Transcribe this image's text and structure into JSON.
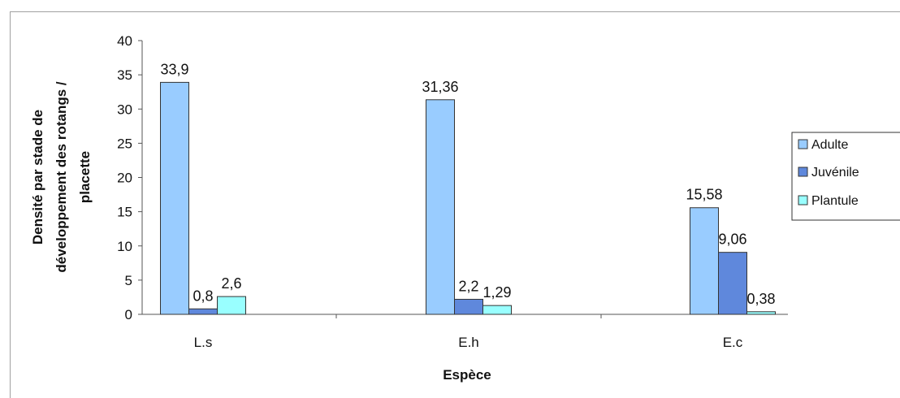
{
  "chart_data": {
    "type": "bar",
    "categories": [
      "L.s",
      "E.h",
      "E.c"
    ],
    "series": [
      {
        "name": "Adulte",
        "values": [
          33.9,
          31.36,
          15.58
        ],
        "labels": [
          "33,9",
          "31,36",
          "15,58"
        ],
        "color": "#99ccff"
      },
      {
        "name": "Juvénile",
        "values": [
          0.8,
          2.2,
          9.06
        ],
        "labels": [
          "0,8",
          "2,2",
          "9,06"
        ],
        "color": "#5f88dc"
      },
      {
        "name": "Plantule",
        "values": [
          2.6,
          1.29,
          0.38
        ],
        "labels": [
          "2,6",
          "1,29",
          "0,38"
        ],
        "color": "#99ffff"
      }
    ],
    "xlabel": "Espèce",
    "ylabel_lines": [
      "Densité par stade de",
      "développement des rotangs /",
      "placette"
    ],
    "ylim": [
      0,
      40
    ],
    "yticks": [
      0,
      5,
      10,
      15,
      20,
      25,
      30,
      35,
      40
    ],
    "grid": false,
    "legend_position": "right"
  }
}
